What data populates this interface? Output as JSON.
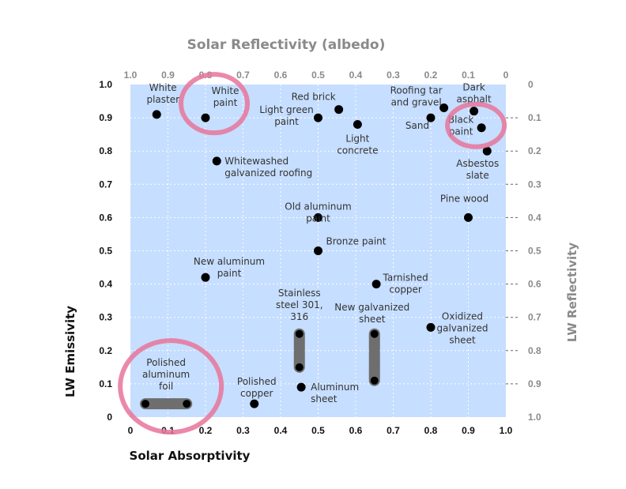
{
  "chart_data": {
    "type": "scatter",
    "top_title": "Solar Reflectivity (albedo)",
    "bottom_title": "Solar Absorptivity",
    "left_title": "LW Emissivity",
    "right_title": "LW Reflectivity",
    "xlim": [
      0,
      1
    ],
    "ylim": [
      0,
      1
    ],
    "x_ticks": [
      "0",
      "0.1",
      "0.2",
      "0.3",
      "0.4",
      "0.5",
      "0.6",
      "0.7",
      "0.8",
      "0.9",
      "1.0"
    ],
    "top_ticks": [
      "1.0",
      "0.9",
      "0.8",
      "0.7",
      "0.6",
      "0.5",
      "0.4",
      "0.3",
      "0.2",
      "0.1",
      "0"
    ],
    "y_ticks": [
      "0",
      "0.1",
      "0.2",
      "0.3",
      "0.4",
      "0.5",
      "0.6",
      "0.7",
      "0.8",
      "0.9",
      "1.0"
    ],
    "right_ticks": [
      "1.0",
      "0.9",
      "0.8",
      "0.7",
      "0.6",
      "0.5",
      "0.4",
      "0.3",
      "0.2",
      "0.1",
      "0"
    ],
    "points": [
      {
        "name": "white-plaster",
        "label": [
          "White",
          "plaster"
        ],
        "x": 0.07,
        "y": 0.91
      },
      {
        "name": "white-paint",
        "label": [
          "White",
          "paint"
        ],
        "x": 0.2,
        "y": 0.9
      },
      {
        "name": "light-green-paint",
        "label": [
          "Light green",
          "paint"
        ],
        "x": 0.5,
        "y": 0.9
      },
      {
        "name": "red-brick",
        "label": [
          "Red brick"
        ],
        "x": 0.555,
        "y": 0.925
      },
      {
        "name": "light-concrete",
        "label": [
          "Light",
          "concrete"
        ],
        "x": 0.605,
        "y": 0.88
      },
      {
        "name": "sand",
        "label": [
          "Sand"
        ],
        "x": 0.8,
        "y": 0.9
      },
      {
        "name": "roofing-tar-and-gravel",
        "label": [
          "Roofing tar",
          "and gravel"
        ],
        "x": 0.835,
        "y": 0.93
      },
      {
        "name": "dark-asphalt",
        "label": [
          "Dark",
          "asphalt"
        ],
        "x": 0.915,
        "y": 0.92
      },
      {
        "name": "black-paint",
        "label": [
          "Black",
          "paint"
        ],
        "x": 0.935,
        "y": 0.87
      },
      {
        "name": "asbestos-slate",
        "label": [
          "Asbestos",
          "slate"
        ],
        "x": 0.95,
        "y": 0.8
      },
      {
        "name": "whitewashed-galvanized-roofing",
        "label": [
          "Whitewashed",
          "galvanized roofing"
        ],
        "x": 0.23,
        "y": 0.77
      },
      {
        "name": "pine-wood",
        "label": [
          "Pine wood"
        ],
        "x": 0.9,
        "y": 0.6
      },
      {
        "name": "old-aluminum-paint",
        "label": [
          "Old aluminum",
          "paint"
        ],
        "x": 0.5,
        "y": 0.6
      },
      {
        "name": "bronze-paint",
        "label": [
          "Bronze paint"
        ],
        "x": 0.5,
        "y": 0.5
      },
      {
        "name": "new-aluminum-paint",
        "label": [
          "New aluminum",
          "paint"
        ],
        "x": 0.2,
        "y": 0.42
      },
      {
        "name": "tarnished-copper",
        "label": [
          "Tarnished",
          "copper"
        ],
        "x": 0.655,
        "y": 0.4
      },
      {
        "name": "oxidized-galvanized-sheet",
        "label": [
          "Oxidized",
          "galvanized",
          "sheet"
        ],
        "x": 0.8,
        "y": 0.27
      },
      {
        "name": "polished-copper",
        "label": [
          "Polished",
          "copper"
        ],
        "x": 0.33,
        "y": 0.04
      },
      {
        "name": "aluminum-sheet",
        "label": [
          "Aluminum",
          "sheet"
        ],
        "x": 0.455,
        "y": 0.09
      }
    ],
    "ranges": [
      {
        "name": "stainless-steel-301-316",
        "label": [
          "Stainless",
          "steel 301,",
          "316"
        ],
        "x1": 0.45,
        "y1": 0.25,
        "x2": 0.45,
        "y2": 0.15
      },
      {
        "name": "new-galvanized-sheet",
        "label": [
          "New galvanized",
          "sheet"
        ],
        "x1": 0.65,
        "y1": 0.25,
        "x2": 0.65,
        "y2": 0.11
      },
      {
        "name": "polished-aluminum-foil",
        "label": [
          "Polished",
          "aluminum",
          "foil"
        ],
        "x1": 0.04,
        "y1": 0.04,
        "x2": 0.15,
        "y2": 0.04
      }
    ],
    "highlights": [
      "white-paint",
      "black-paint",
      "polished-aluminum-foil"
    ],
    "colors": {
      "plot_bg": "#c6deff",
      "highlight": "#e8749a",
      "marker": "#000000",
      "range_bar": "#6e6e6e",
      "grid": "#ffffff"
    }
  }
}
